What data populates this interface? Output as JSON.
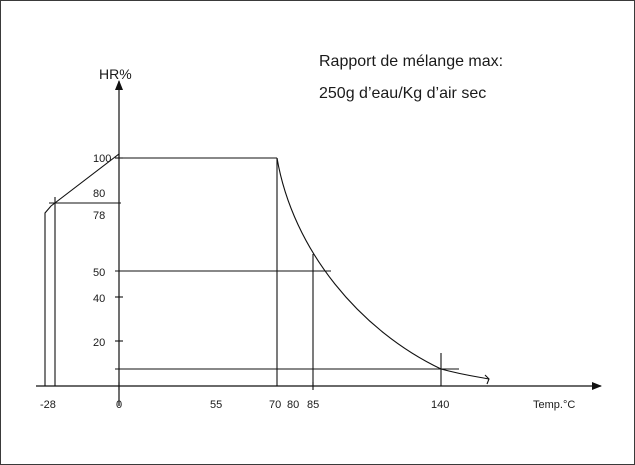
{
  "diagram": {
    "y_axis_title": "HR%",
    "x_axis_title": "Temp.°C",
    "annotation_line1": "Rapport de mélange max:",
    "annotation_line2": "250g d’eau/Kg d’air sec",
    "x_tick_labels": [
      "-28",
      "0",
      "55",
      "70",
      "80",
      "85",
      "140"
    ],
    "y_tick_labels": [
      "100",
      "80",
      "78",
      "50",
      "40",
      "20"
    ],
    "boundary": {
      "corner_low": {
        "temp": -28,
        "hr": 78
      },
      "corner_high": {
        "temp": 0,
        "hr": 100
      },
      "plateau_end": {
        "temp": 70,
        "hr": 100
      },
      "curve_end": {
        "temp": 140,
        "hr": 10
      }
    },
    "reference_points": [
      {
        "temp": 85,
        "hr": 50
      },
      {
        "temp": 140,
        "hr": 10
      }
    ]
  }
}
